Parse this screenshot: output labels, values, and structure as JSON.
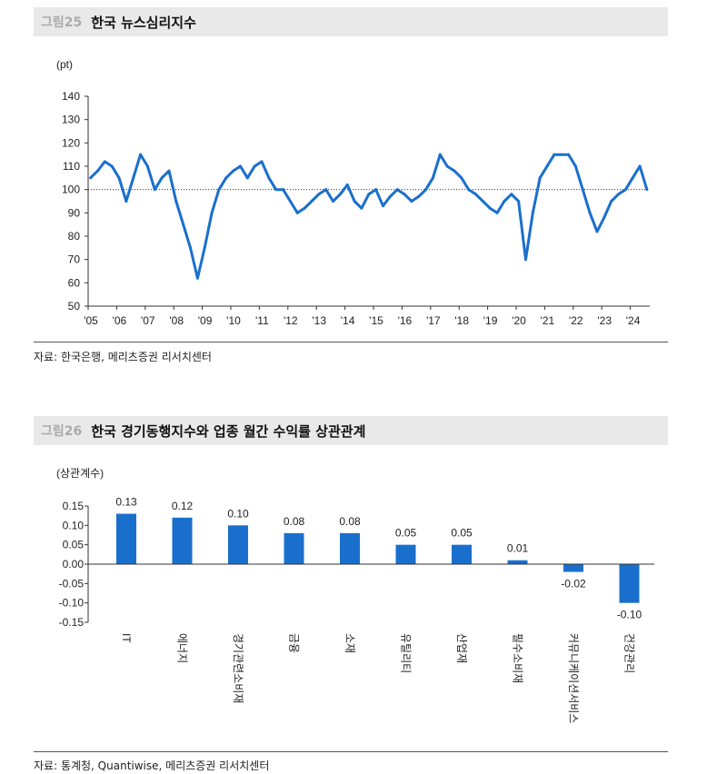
{
  "fig25": {
    "number": "그림25",
    "title": "한국 뉴스심리지수",
    "source": "자료: 한국은행, 메리츠증권 리서치센터"
  },
  "fig26": {
    "number": "그림26",
    "title": "한국 경기동행지수와 업종 월간 수익률 상관관계",
    "source": "자료: 통계청, Quantiwise, 메리츠증권 리서치센터"
  },
  "chart_data": [
    {
      "type": "line",
      "ylabel": "(pt)",
      "ylim": [
        50,
        140
      ],
      "yticks": [
        "140",
        "130",
        "120",
        "110",
        "100",
        "90",
        "80",
        "70",
        "60",
        "50"
      ],
      "xticks": [
        "'05",
        "'06",
        "'07",
        "'08",
        "'09",
        "'10",
        "'11",
        "'12",
        "'13",
        "'14",
        "'15",
        "'16",
        "'17",
        "'18",
        "'19",
        "'20",
        "'21",
        "'22",
        "'23",
        "'24"
      ],
      "reference_line": 100,
      "color": "#1a6fcc",
      "x": [
        "2005-02",
        "2005-05",
        "2005-08",
        "2005-11",
        "2006-02",
        "2006-05",
        "2006-08",
        "2006-11",
        "2007-02",
        "2007-05",
        "2007-08",
        "2007-11",
        "2008-02",
        "2008-05",
        "2008-08",
        "2008-11",
        "2009-02",
        "2009-05",
        "2009-08",
        "2009-11",
        "2010-02",
        "2010-05",
        "2010-08",
        "2010-11",
        "2011-02",
        "2011-05",
        "2011-08",
        "2011-11",
        "2012-02",
        "2012-05",
        "2012-08",
        "2012-11",
        "2013-02",
        "2013-05",
        "2013-08",
        "2013-11",
        "2014-02",
        "2014-05",
        "2014-08",
        "2014-11",
        "2015-02",
        "2015-05",
        "2015-08",
        "2015-11",
        "2016-02",
        "2016-05",
        "2016-08",
        "2016-11",
        "2017-02",
        "2017-05",
        "2017-08",
        "2017-11",
        "2018-02",
        "2018-05",
        "2018-08",
        "2018-11",
        "2019-02",
        "2019-05",
        "2019-08",
        "2019-11",
        "2020-02",
        "2020-05",
        "2020-08",
        "2020-11",
        "2021-02",
        "2021-05",
        "2021-08",
        "2021-11",
        "2022-02",
        "2022-05",
        "2022-08",
        "2022-11",
        "2023-02",
        "2023-05",
        "2023-08",
        "2023-11",
        "2024-02",
        "2024-05",
        "2024-08"
      ],
      "values": [
        105,
        108,
        112,
        110,
        105,
        95,
        105,
        115,
        110,
        100,
        105,
        108,
        95,
        85,
        75,
        62,
        75,
        90,
        100,
        105,
        108,
        110,
        105,
        110,
        112,
        105,
        100,
        100,
        95,
        90,
        92,
        95,
        98,
        100,
        95,
        98,
        102,
        95,
        92,
        98,
        100,
        93,
        97,
        100,
        98,
        95,
        97,
        100,
        105,
        115,
        110,
        108,
        105,
        100,
        98,
        95,
        92,
        90,
        95,
        98,
        95,
        70,
        90,
        105,
        110,
        115,
        115,
        115,
        110,
        100,
        90,
        82,
        88,
        95,
        98,
        100,
        105,
        110,
        100
      ]
    },
    {
      "type": "bar",
      "ylabel": "(상관계수)",
      "ylim": [
        -0.15,
        0.15
      ],
      "yticks": [
        "0.15",
        "0.10",
        "0.05",
        "0.00",
        "-0.05",
        "-0.10",
        "-0.15"
      ],
      "categories": [
        "IT",
        "에너지",
        "경기관련소비재",
        "금융",
        "소재",
        "유틸리티",
        "산업재",
        "필수소비재",
        "커뮤니케이션서비스",
        "건강관리"
      ],
      "values": [
        0.13,
        0.12,
        0.1,
        0.08,
        0.08,
        0.05,
        0.05,
        0.01,
        -0.02,
        -0.1
      ],
      "labels": [
        "0.13",
        "0.12",
        "0.10",
        "0.08",
        "0.08",
        "0.05",
        "0.05",
        "0.01",
        "-0.02",
        "-0.10"
      ],
      "color": "#1a6fcc"
    }
  ]
}
